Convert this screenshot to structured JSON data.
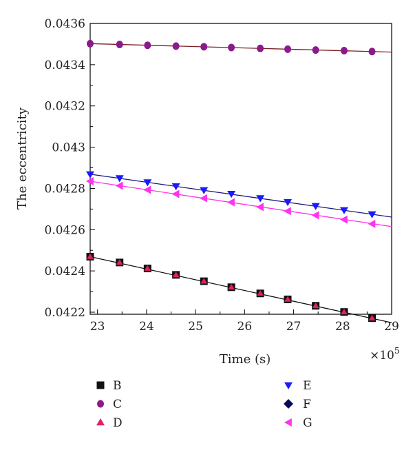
{
  "chart_data": {
    "type": "scatter",
    "xlabel": "Time (s)",
    "ylabel": "The eccentricity",
    "x_multiplier_label": "×10",
    "x_multiplier_exponent": "5",
    "xlim": [
      22.85,
      29
    ],
    "ylim": [
      0.04219,
      0.0436
    ],
    "x_ticks": [
      23,
      24,
      25,
      26,
      27,
      28,
      29
    ],
    "x_tick_labels": [
      "23",
      "24",
      "25",
      "26",
      "27",
      "28",
      "29"
    ],
    "y_ticks": [
      0.0422,
      0.0424,
      0.0426,
      0.0428,
      0.043,
      0.0432,
      0.0434,
      0.0436
    ],
    "y_tick_labels": [
      "0.0422",
      "0.0424",
      "0.0426",
      "0.0428",
      "0.043",
      "0.0432",
      "0.0434",
      "0.0436"
    ],
    "grid": false,
    "legend_position": "bottom",
    "x": [
      22.85,
      23.45,
      24.02,
      24.6,
      25.17,
      25.73,
      26.32,
      26.88,
      27.45,
      28.03,
      28.6
    ],
    "series": [
      {
        "name": "B",
        "marker": "square",
        "color": "#111111",
        "line": {
          "color": "#111111",
          "start": [
            22.85,
            0.042469
          ],
          "end": [
            29,
            0.042149
          ]
        },
        "values": [
          0.042469,
          0.042441,
          0.042412,
          0.042381,
          0.04235,
          0.042321,
          0.042291,
          0.042262,
          0.042231,
          0.042201,
          0.042171
        ]
      },
      {
        "name": "C",
        "marker": "circle",
        "color": "#8b1a8b",
        "line": {
          "color": "#7a1f1f",
          "start": [
            22.85,
            0.043502
          ],
          "end": [
            29,
            0.043461
          ]
        },
        "values": [
          0.043502,
          0.043498,
          0.043494,
          0.04349,
          0.043487,
          0.043483,
          0.043479,
          0.043475,
          0.043471,
          0.043468,
          0.043464
        ]
      },
      {
        "name": "D",
        "marker": "triangle-up",
        "color": "#e0206a",
        "line": null,
        "values": [
          0.042469,
          0.042441,
          0.042412,
          0.042381,
          0.04235,
          0.042321,
          0.042291,
          0.042262,
          0.042231,
          0.042201,
          0.042171
        ]
      },
      {
        "name": "E",
        "marker": "triangle-down",
        "color": "#1a1aff",
        "line": {
          "color": "#1a1a80",
          "start": [
            22.85,
            0.042869
          ],
          "end": [
            29,
            0.042661
          ]
        },
        "values": [
          0.042869,
          0.04285,
          0.04283,
          0.042811,
          0.042792,
          0.042774,
          0.042753,
          0.042734,
          0.042715,
          0.042695,
          0.042675
        ]
      },
      {
        "name": "F",
        "marker": "diamond",
        "color": "#0a0a5a",
        "line": null,
        "values": []
      },
      {
        "name": "G",
        "marker": "triangle-left",
        "color": "#ff33ee",
        "line": {
          "color": "#ff33ee",
          "start": [
            22.85,
            0.042835
          ],
          "end": [
            29,
            0.042615
          ]
        },
        "values": [
          0.042835,
          0.042813,
          0.042793,
          0.042773,
          0.042752,
          0.042733,
          0.04271,
          0.04269,
          0.04267,
          0.042649,
          0.042628
        ]
      }
    ]
  }
}
